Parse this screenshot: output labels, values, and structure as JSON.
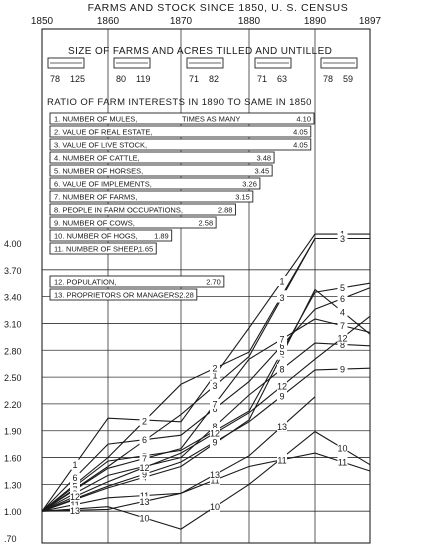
{
  "chart_data": {
    "type": "line",
    "title": "FARMS AND STOCK SINCE 1850, U. S. CENSUS",
    "x": [
      1850,
      1860,
      1870,
      1880,
      1890
    ],
    "x_ticks": [
      "1850",
      "1860",
      "1870",
      "1880",
      "1890",
      "1897"
    ],
    "y_ticks": [
      "4.00",
      "3.70",
      "3.40",
      "3.10",
      "2.80",
      "2.50",
      "2.20",
      "1.90",
      "1.60",
      "1.30",
      "1.00",
      ".70"
    ],
    "y_tick_values": [
      4.0,
      3.7,
      3.4,
      3.1,
      2.8,
      2.5,
      2.2,
      1.9,
      1.6,
      1.3,
      1.0,
      0.7
    ],
    "ylim": [
      0.7,
      4.0
    ],
    "size_panel": {
      "title": "SIZE OF FARMS AND ACRES TILLED AND UNTILLED",
      "values": [
        [
          "78",
          "125"
        ],
        [
          "80",
          "119"
        ],
        [
          "71",
          "82"
        ],
        [
          "71",
          "63"
        ],
        [
          "78",
          "59"
        ]
      ]
    },
    "ratio_panel": {
      "title": "RATIO OF FARM INTERESTS IN 1890 TO SAME IN 1850",
      "note": "TIMES AS MANY",
      "items": [
        {
          "label": "1. NUMBER OF MULES,",
          "value": "4.10",
          "ratio": 4.1
        },
        {
          "label": "2. VALUE OF REAL ESTATE,",
          "value": "4.05",
          "ratio": 4.05
        },
        {
          "label": "3. VALUE OF LIVE STOCK,",
          "value": "4.05",
          "ratio": 4.05
        },
        {
          "label": "4. NUMBER OF CATTLE,",
          "value": "3.48",
          "ratio": 3.48
        },
        {
          "label": "5. NUMBER OF HORSES,",
          "value": "3.45",
          "ratio": 3.45
        },
        {
          "label": "6. VALUE OF IMPLEMENTS,",
          "value": "3.26",
          "ratio": 3.26
        },
        {
          "label": "7. NUMBER OF FARMS,",
          "value": "3.15",
          "ratio": 3.15
        },
        {
          "label": "8. PEOPLE IN FARM OCCUPATIONS,",
          "value": "2.88",
          "ratio": 2.88
        },
        {
          "label": "9. NUMBER OF COWS,",
          "value": "2.58",
          "ratio": 2.58
        },
        {
          "label": "10. NUMBER OF HOGS,",
          "value": "1.89",
          "ratio": 1.89
        },
        {
          "label": "11. NUMBER OF SHEEP,",
          "value": "1.65",
          "ratio": 1.65
        },
        {
          "label": "12. POPULATION,",
          "value": "2.70",
          "ratio": 2.7
        },
        {
          "label": "13. PROPRIETORS OR MANAGERS,",
          "value": "2.28",
          "ratio": 2.28
        }
      ]
    },
    "series": [
      {
        "name": "1",
        "values": [
          1.0,
          2.04,
          2.0,
          3.05,
          4.1
        ],
        "end": [
          1897,
          4.1
        ]
      },
      {
        "name": "2",
        "values": [
          1.0,
          1.6,
          2.42,
          2.78,
          4.05
        ],
        "end": [
          1897,
          4.05
        ]
      },
      {
        "name": "3",
        "values": [
          1.0,
          1.5,
          2.08,
          2.73,
          4.05
        ],
        "end": [
          1897,
          4.05
        ]
      },
      {
        "name": "4",
        "values": [
          1.0,
          1.26,
          1.5,
          2.02,
          3.48
        ],
        "end": [
          1897,
          2.98
        ]
      },
      {
        "name": "5",
        "values": [
          1.0,
          1.56,
          1.68,
          2.12,
          3.45
        ],
        "end": [
          1897,
          3.55
        ]
      },
      {
        "name": "6",
        "values": [
          1.0,
          1.75,
          1.85,
          2.45,
          3.26
        ],
        "end": [
          1897,
          3.5
        ]
      },
      {
        "name": "7",
        "values": [
          1.0,
          1.48,
          1.7,
          2.7,
          3.15
        ],
        "end": [
          1897,
          3.0
        ]
      },
      {
        "name": "8",
        "values": [
          1.0,
          1.4,
          1.6,
          2.3,
          2.88
        ],
        "end": [
          1897,
          2.85
        ]
      },
      {
        "name": "9",
        "values": [
          1.0,
          1.28,
          1.55,
          2.0,
          2.58
        ],
        "end": [
          1897,
          2.6
        ]
      },
      {
        "name": "10",
        "values": [
          1.0,
          1.05,
          0.8,
          1.3,
          1.89
        ],
        "end": [
          1897,
          1.52
        ]
      },
      {
        "name": "11",
        "values": [
          1.0,
          1.15,
          1.2,
          1.5,
          1.65
        ],
        "end": [
          1897,
          1.45
        ]
      },
      {
        "name": "12",
        "values": [
          1.0,
          1.33,
          1.65,
          2.1,
          2.7
        ],
        "end": [
          1897,
          3.18
        ]
      },
      {
        "name": "13",
        "values": [
          1.0,
          1.02,
          1.2,
          1.62,
          2.28
        ],
        "end": null
      }
    ]
  }
}
